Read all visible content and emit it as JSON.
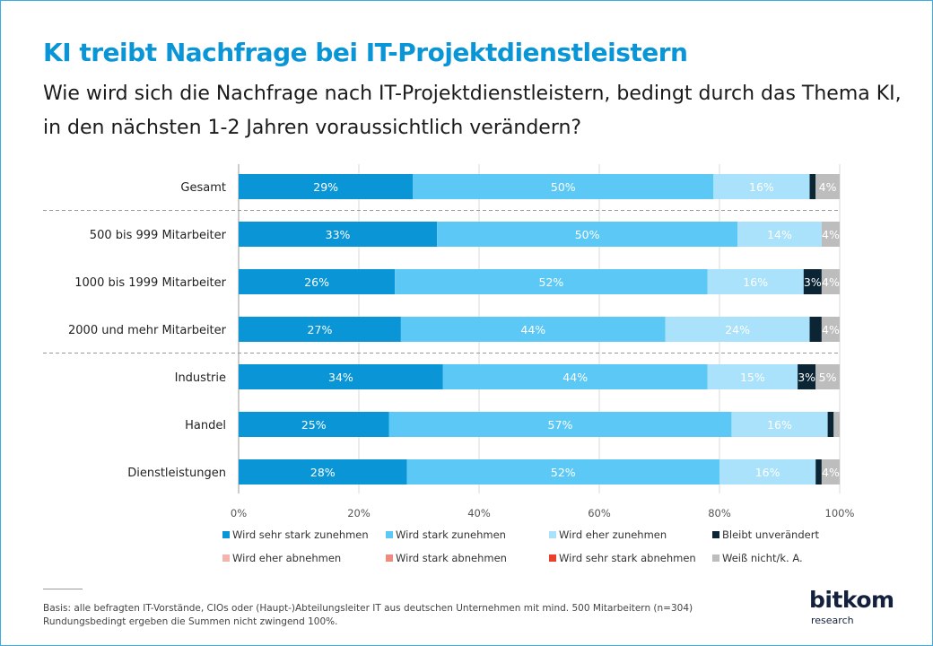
{
  "title": "KI treibt Nachfrage bei IT-Projektdienstleistern",
  "subtitle": "Wie wird sich die Nachfrage nach IT-Projektdienstleistern, bedingt durch das Thema KI, in den nächsten 1-2 Jahren voraussichtlich verändern?",
  "footnote_line1": "Basis: alle befragten IT-Vorstände, CIOs oder (Haupt-)Abteilungsleiter IT aus deutschen Unternehmen mit mind. 500 Mitarbeitern (n=304)",
  "footnote_line2": "Rundungsbedingt ergeben die Summen nicht zwingend 100%.",
  "logo": {
    "main_bit": "bit",
    "main_kom": "kom",
    "sub": "research"
  },
  "chart_data": {
    "type": "bar",
    "orientation": "horizontal",
    "stacked": true,
    "categories": [
      "Gesamt",
      "500 bis 999 Mitarbeiter",
      "1000 bis 1999 Mitarbeiter",
      "2000 und mehr Mitarbeiter",
      "Industrie",
      "Handel",
      "Dienstleistungen"
    ],
    "group_separators_after": [
      "Gesamt",
      "2000 und mehr Mitarbeiter"
    ],
    "xlim": [
      0,
      100
    ],
    "xticks": [
      "0%",
      "20%",
      "40%",
      "60%",
      "80%",
      "100%"
    ],
    "grid": true,
    "legend_position": "bottom",
    "series": [
      {
        "name": "Wird sehr stark zunehmen",
        "color": "#0a96d6",
        "values": [
          29,
          33,
          26,
          27,
          34,
          25,
          28
        ],
        "labels": [
          "29%",
          "33%",
          "26%",
          "27%",
          "34%",
          "25%",
          "28%"
        ]
      },
      {
        "name": "Wird stark zunehmen",
        "color": "#5bc8f5",
        "values": [
          50,
          50,
          52,
          44,
          44,
          57,
          52
        ],
        "labels": [
          "50%",
          "50%",
          "52%",
          "44%",
          "44%",
          "57%",
          "52%"
        ]
      },
      {
        "name": "Wird eher zunehmen",
        "color": "#a9e2fa",
        "values": [
          16,
          14,
          16,
          24,
          15,
          16,
          16
        ],
        "labels": [
          "16%",
          "14%",
          "16%",
          "24%",
          "15%",
          "16%",
          "16%"
        ]
      },
      {
        "name": "Bleibt unverändert",
        "color": "#0b2534",
        "values": [
          1,
          0,
          3,
          2,
          3,
          1,
          1
        ],
        "labels": [
          "",
          "",
          "3%",
          "",
          "3%",
          "",
          ""
        ]
      },
      {
        "name": "Wird eher abnehmen",
        "color": "#f4b4ae",
        "values": [
          0,
          0,
          0,
          0,
          0,
          0,
          0
        ],
        "labels": [
          "",
          "",
          "",
          "",
          "",
          "",
          ""
        ]
      },
      {
        "name": "Wird stark abnehmen",
        "color": "#ee8a7f",
        "values": [
          0,
          0,
          0,
          0,
          0,
          0,
          0
        ],
        "labels": [
          "",
          "",
          "",
          "",
          "",
          "",
          ""
        ]
      },
      {
        "name": "Wird sehr stark abnehmen",
        "color": "#e8412e",
        "values": [
          0,
          0,
          0,
          0,
          0,
          0,
          0
        ],
        "labels": [
          "",
          "",
          "",
          "",
          "",
          "",
          ""
        ]
      },
      {
        "name": "Weiß nicht/k. A.",
        "color": "#bdbdbd",
        "values": [
          4,
          4,
          4,
          4,
          5,
          1,
          4
        ],
        "labels": [
          "4%",
          "4%",
          "4%",
          "4%",
          "5%",
          "",
          "4%"
        ]
      }
    ]
  }
}
